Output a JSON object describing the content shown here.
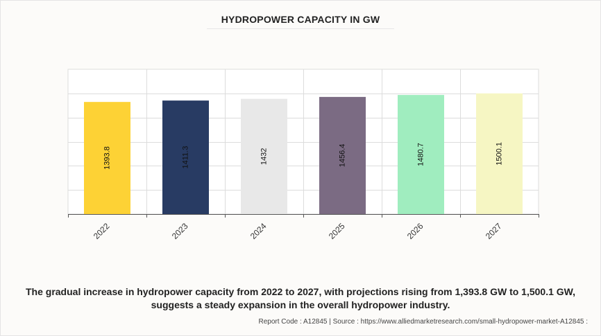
{
  "chart_data": {
    "type": "bar",
    "title": "HYDROPOWER CAPACITY IN GW",
    "categories": [
      "2022",
      "2023",
      "2024",
      "2025",
      "2026",
      "2027"
    ],
    "values": [
      1393.8,
      1411.3,
      1432,
      1456.4,
      1480.7,
      1500.1
    ],
    "value_labels": [
      "1393.8",
      "1411.3",
      "1432",
      "1456.4",
      "1480.7",
      "1500.1"
    ],
    "colors": [
      "#fdd235",
      "#283b63",
      "#e8e8e8",
      "#7b6b83",
      "#a0edbf",
      "#f6f6c3"
    ],
    "ylim": [
      0,
      1800
    ],
    "grid": true,
    "y_tick_labels_visible": false
  },
  "caption": "The gradual increase in hydropower capacity from 2022 to 2027, with projections rising from 1,393.8 GW to 1,500.1 GW, suggests a steady expansion in the overall hydropower industry.",
  "footer": "Report Code : A12845  |  Source : https://www.alliedmarketresearch.com/small-hydropower-market-A12845 :"
}
